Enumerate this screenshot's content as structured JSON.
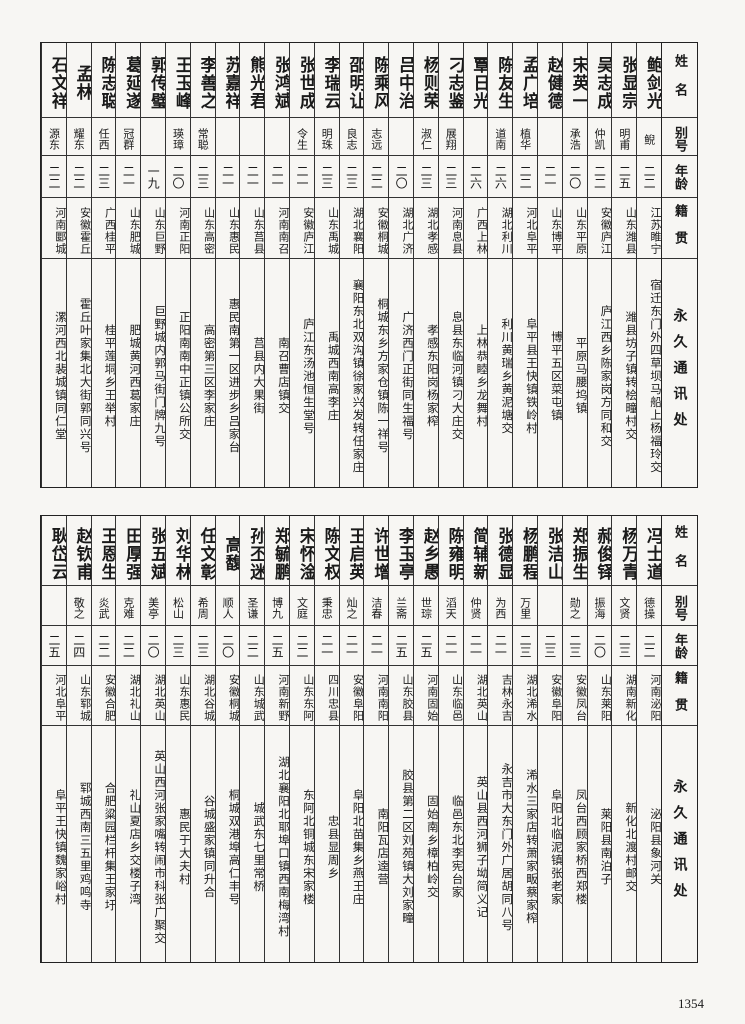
{
  "headers": {
    "name": "姓名",
    "alias": "别号",
    "age": "年龄",
    "native": "籍贯",
    "address": "永久通讯处"
  },
  "top_table": [
    {
      "name": "鲍剑光",
      "alias": "鲵",
      "age": "二二",
      "native": "江苏睢宁",
      "address": "宿迁东门外四草坝马船上杨福玲交"
    },
    {
      "name": "张显宗",
      "alias": "明甫",
      "age": "二五",
      "native": "山东潍县",
      "address": "潍县坊子镇转桧疃村交"
    },
    {
      "name": "吴志成",
      "alias": "仲凯",
      "age": "二二",
      "native": "安徽庐江",
      "address": "庐江西乡陈家岗方同和交"
    },
    {
      "name": "宋英一",
      "alias": "承浩",
      "age": "二〇",
      "native": "山东平原",
      "address": "平原马腰坞镇"
    },
    {
      "name": "赵健德",
      "alias": "",
      "age": "二一",
      "native": "山东博平",
      "address": "博平五区菜屯镇"
    },
    {
      "name": "孟广培",
      "alias": "植华",
      "age": "二二",
      "native": "河北阜平",
      "address": "阜平县王快镇铁岭村"
    },
    {
      "name": "陈友生",
      "alias": "道南",
      "age": "二六",
      "native": "湖北利川",
      "address": "利川黄瑞乡黄泥塘交"
    },
    {
      "name": "覃日光",
      "alias": "",
      "age": "二六",
      "native": "广西上林",
      "address": "上林恭睦乡龙舞村"
    },
    {
      "name": "刁志鉴",
      "alias": "展翔",
      "age": "二三",
      "native": "河南息县",
      "address": "息县东临河镇刁大庄交"
    },
    {
      "name": "杨则荣",
      "alias": "淑仁",
      "age": "二三",
      "native": "湖北孝感",
      "address": "孝感东阳岗杨家榨"
    },
    {
      "name": "吕中治",
      "alias": "",
      "age": "二〇",
      "native": "湖北广济",
      "address": "广济西门正街同生福号"
    },
    {
      "name": "陈乘风",
      "alias": "志远",
      "age": "二二",
      "native": "安徽桐城",
      "address": "桐城东乡方家仓镇陈一祥号"
    },
    {
      "name": "邵明让",
      "alias": "良志",
      "age": "二三",
      "native": "湖北襄阳",
      "address": "襄阳东北双沟镇徐家兴发转任家庄"
    },
    {
      "name": "李瑞云",
      "alias": "明珠",
      "age": "二三",
      "native": "山东禹城",
      "address": "禹城西南高李庄"
    },
    {
      "name": "张世成",
      "alias": "令生",
      "age": "二一",
      "native": "安徽庐江",
      "address": "庐江东汤池恒生堂号"
    },
    {
      "name": "张鸿斌",
      "alias": "",
      "age": "二一",
      "native": "河南南召",
      "address": "南召曹店镇交"
    },
    {
      "name": "熊光君",
      "alias": "",
      "age": "二一",
      "native": "山东莒县",
      "address": "莒县内大果街"
    },
    {
      "name": "苏嘉祥",
      "alias": "",
      "age": "二一",
      "native": "山东惠民",
      "address": "惠民南第一区进步乡吕家台"
    },
    {
      "name": "李善之",
      "alias": "常聪",
      "age": "二三",
      "native": "山东高密",
      "address": "高密第三区李家庄"
    },
    {
      "name": "王玉峰",
      "alias": "瑛璋",
      "age": "二〇",
      "native": "河南正阳",
      "address": "正阳南南中正镇公所交"
    },
    {
      "name": "郭传璧",
      "alias": "",
      "age": "一九",
      "native": "山东巨野",
      "address": "巨野城内郭马街门牌九号"
    },
    {
      "name": "葛延遂",
      "alias": "冠群",
      "age": "二一",
      "native": "山东肥城",
      "address": "肥城黄河西葛家庄"
    },
    {
      "name": "陈志聪",
      "alias": "任西",
      "age": "二三",
      "native": "广西桂平",
      "address": "桂平莲垌乡王举村"
    },
    {
      "name": "孟林",
      "alias": "耀东",
      "age": "二二",
      "native": "安徽霍丘",
      "address": "霍丘叶家集北大街郭同兴号"
    },
    {
      "name": "石文祥",
      "alias": "源东",
      "age": "二二",
      "native": "河南郾城",
      "address": "漯河西北裴城镇同仁堂"
    }
  ],
  "bottom_table": [
    {
      "name": "冯士道",
      "alias": "德操",
      "age": "二二",
      "native": "河南泌阳",
      "address": "泌阳县象河关"
    },
    {
      "name": "杨万青",
      "alias": "文贤",
      "age": "二三",
      "native": "湖南新化",
      "address": "新化北渡村邮交"
    },
    {
      "name": "郝俊铎",
      "alias": "振海",
      "age": "二〇",
      "native": "山东莱阳",
      "address": "莱阳县南泊子"
    },
    {
      "name": "郑振生",
      "alias": "勋之",
      "age": "二三",
      "native": "安徽凤台",
      "address": "凤台西顾家桥西郑楼"
    },
    {
      "name": "张洁山",
      "alias": "",
      "age": "二三",
      "native": "安徽阜阳",
      "address": "阜阳北临泥镇张老家"
    },
    {
      "name": "杨鹏程",
      "alias": "万里",
      "age": "二三",
      "native": "湖北浠水",
      "address": "浠水三家店转萧家畈蔡家榨"
    },
    {
      "name": "张德显",
      "alias": "为西",
      "age": "二一",
      "native": "吉林永吉",
      "address": "永吉市大东门外广居胡同八号"
    },
    {
      "name": "简辅新",
      "alias": "仲贤",
      "age": "二一",
      "native": "湖北英山",
      "address": "英山县西河狮子坳简义记"
    },
    {
      "name": "陈雍明",
      "alias": "滔天",
      "age": "二一",
      "native": "山东临邑",
      "address": "临邑东北李宪台家"
    },
    {
      "name": "赵乡愚",
      "alias": "世琮",
      "age": "二五",
      "native": "河南固始",
      "address": "固始南乡樟柏岭交"
    },
    {
      "name": "李玉亭",
      "alias": "兰斋",
      "age": "二五",
      "native": "山东胶县",
      "address": "胶县第二区刘苑镇大刘家疃"
    },
    {
      "name": "许世增",
      "alias": "洁春",
      "age": "二一",
      "native": "河南南阳",
      "address": "南阳瓦店逵营"
    },
    {
      "name": "王启英",
      "alias": "灿之",
      "age": "二一",
      "native": "安徽阜阳",
      "address": "阜阳北苗集乡燕王庄"
    },
    {
      "name": "陈文权",
      "alias": "秉忠",
      "age": "二一",
      "native": "四川忠县",
      "address": "忠县显周乡"
    },
    {
      "name": "宋怀淦",
      "alias": "文庭",
      "age": "二二",
      "native": "山东东阿",
      "address": "东阿北铜城东宋家楼"
    },
    {
      "name": "郑毓鹏",
      "alias": "博九",
      "age": "二五",
      "native": "河南新野",
      "address": "湖北襄阳北耶埠口镇西南梅湾村"
    },
    {
      "name": "孙丕迷",
      "alias": "圣谦",
      "age": "二二",
      "native": "山东城武",
      "address": "城武东七里常桥"
    },
    {
      "name": "高馥",
      "alias": "顺人",
      "age": "二〇",
      "native": "安徽桐城",
      "address": "桐城双港埠高仁丰号"
    },
    {
      "name": "任文彰",
      "alias": "希周",
      "age": "二三",
      "native": "湖北谷城",
      "address": "谷城盛家镇同升合"
    },
    {
      "name": "刘华林",
      "alias": "松山",
      "age": "二三",
      "native": "山东惠民",
      "address": "惠民于大夫村"
    },
    {
      "name": "张五斌",
      "alias": "美亭",
      "age": "二〇",
      "native": "湖北英山",
      "address": "英山西河张家嘴转闹市科张广聚交"
    },
    {
      "name": "田厚强",
      "alias": "克难",
      "age": "二二",
      "native": "湖北礼山",
      "address": "礼山夏店乡交楼子湾"
    },
    {
      "name": "王恩生",
      "alias": "炎武",
      "age": "二二",
      "native": "安徽合肥",
      "address": "合肥粱园栏杆集王家圩"
    },
    {
      "name": "赵钦甫",
      "alias": "敬之",
      "age": "二四",
      "native": "山东郓城",
      "address": "郓城西南三五里鸡鸣寺"
    },
    {
      "name": "耿岱云",
      "alias": "",
      "age": "二五",
      "native": "河北阜平",
      "address": "阜平王快镇魏家峪村"
    }
  ],
  "page_number": "1354"
}
